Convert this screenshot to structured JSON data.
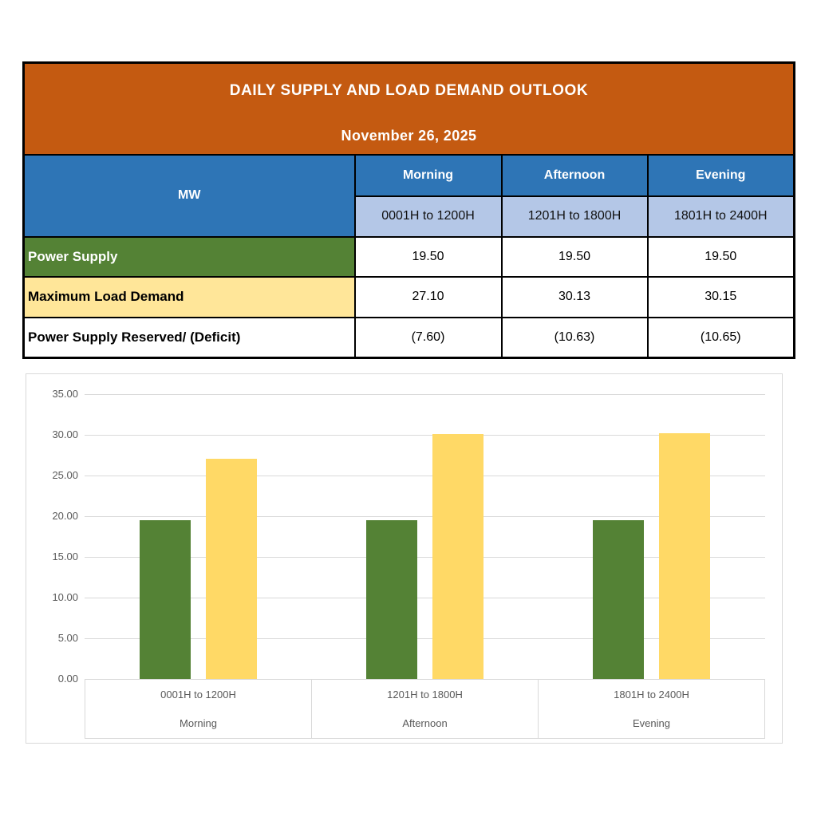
{
  "table": {
    "title": "DAILY SUPPLY AND LOAD DEMAND OUTLOOK",
    "date": "November 26, 2025",
    "unit_header": "MW",
    "columns": [
      {
        "period": "Morning",
        "range": "0001H to 1200H"
      },
      {
        "period": "Afternoon",
        "range": "1201H to 1800H"
      },
      {
        "period": "Evening",
        "range": "1801H to 2400H"
      }
    ],
    "rows": [
      {
        "label": "Power Supply",
        "values": [
          "19.50",
          "19.50",
          "19.50"
        ]
      },
      {
        "label": "Maximum Load Demand",
        "values": [
          "27.10",
          "30.13",
          "30.15"
        ]
      },
      {
        "label": "Power Supply Reserved/ (Deficit)",
        "values": [
          "(7.60)",
          "(10.63)",
          "(10.65)"
        ]
      }
    ]
  },
  "chart_data": {
    "type": "bar",
    "title": "",
    "categories": [
      "0001H to 1200H",
      "1201H to 1800H",
      "1801H to 2400H"
    ],
    "category_groups": [
      "Morning",
      "Afternoon",
      "Evening"
    ],
    "series": [
      {
        "name": "Power Supply",
        "color": "#548235",
        "values": [
          19.5,
          19.5,
          19.5
        ]
      },
      {
        "name": "Maximum Load Demand",
        "color": "#FFD966",
        "values": [
          27.1,
          30.13,
          30.15
        ]
      }
    ],
    "ylim": [
      0,
      35
    ],
    "ytick_step": 5,
    "ytick_format_decimals": 2,
    "grid": true,
    "legend": "none"
  },
  "colors": {
    "header_bg": "#C45A11",
    "header_text": "#FFFFFF",
    "blue_header": "#2E75B6",
    "light_blue": "#B4C7E7",
    "green_row": "#548235",
    "yellow_row": "#FFE699",
    "bar_green": "#548235",
    "bar_yellow": "#FFD966",
    "gridline": "#D9D9D9",
    "axis_text": "#595959",
    "table_border": "#000000"
  }
}
